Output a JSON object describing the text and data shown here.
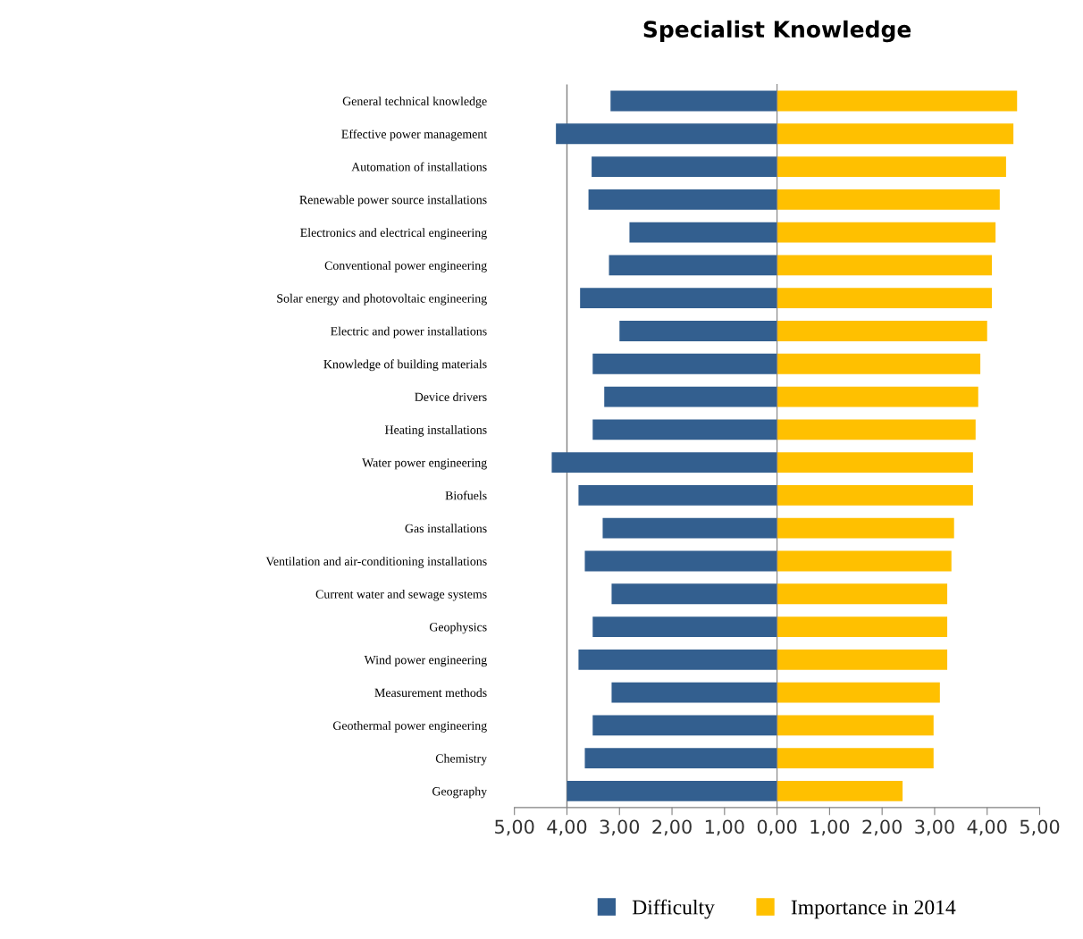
{
  "chart_data": {
    "type": "bar",
    "orientation": "horizontal",
    "title": "Specialist Knowledge",
    "categories": [
      "General technical knowledge",
      "Effective power management",
      "Automation of installations",
      "Renewable power source installations",
      "Electronics and electrical engineering",
      "Conventional power engineering",
      "Solar energy and photovoltaic engineering",
      "Electric and power installations",
      "Knowledge of building materials",
      "Device drivers",
      "Heating installations",
      "Water power engineering",
      "Biofuels",
      "Gas installations",
      "Ventilation and air-conditioning installations",
      "Current water and sewage systems",
      "Geophysics",
      "Wind power engineering",
      "Measurement methods",
      "Geothermal power engineering",
      "Chemistry",
      "Geography"
    ],
    "series": [
      {
        "name": "Difficulty",
        "color": "#335f8f",
        "values": [
          -3.17,
          -4.21,
          -3.53,
          -3.59,
          -2.81,
          -3.2,
          -3.75,
          -3.0,
          -3.51,
          -3.29,
          -3.51,
          -4.29,
          -3.78,
          -3.32,
          -3.66,
          -3.15,
          -3.51,
          -3.78,
          -3.15,
          -3.51,
          -3.66,
          -4.0
        ]
      },
      {
        "name": "Importance in 2014",
        "color": "#ffc000",
        "values": [
          4.57,
          4.5,
          4.36,
          4.24,
          4.16,
          4.09,
          4.09,
          4.0,
          3.87,
          3.83,
          3.78,
          3.73,
          3.73,
          3.37,
          3.32,
          3.24,
          3.24,
          3.24,
          3.1,
          2.98,
          2.98,
          2.39
        ]
      }
    ],
    "xlim": [
      -5,
      5
    ],
    "xticks": [
      {
        "value": -5,
        "label": "5,00"
      },
      {
        "value": -4,
        "label": "4,00"
      },
      {
        "value": -3,
        "label": "3,00"
      },
      {
        "value": -2,
        "label": "2,00"
      },
      {
        "value": -1,
        "label": "1,00"
      },
      {
        "value": 0,
        "label": "0,00"
      },
      {
        "value": 1,
        "label": "1,00"
      },
      {
        "value": 2,
        "label": "2,00"
      },
      {
        "value": 3,
        "label": "3,00"
      },
      {
        "value": 4,
        "label": "4,00"
      },
      {
        "value": 5,
        "label": "5,00"
      }
    ],
    "stacked": true,
    "ref_lines": [
      {
        "axis": "x",
        "value": -4,
        "label": null,
        "color": "#808080"
      }
    ],
    "grid": false,
    "legend": "bottom"
  }
}
